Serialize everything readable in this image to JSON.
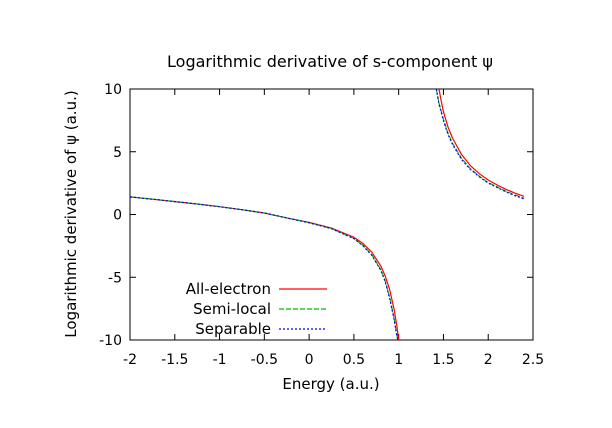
{
  "chart_data": {
    "type": "line",
    "title": "Logarithmic derivative of s-component ψ",
    "xlabel": "Energy (a.u.)",
    "ylabel": "Logarithmic derivative of ψ (a.u.)",
    "xlim": [
      -2,
      2.5
    ],
    "ylim": [
      -10,
      10
    ],
    "x_ticks": [
      -2,
      -1.5,
      -1,
      -0.5,
      0,
      0.5,
      1,
      1.5,
      2,
      2.5
    ],
    "y_ticks": [
      -10,
      -5,
      0,
      5,
      10
    ],
    "x_tick_labels": [
      "-2",
      "-1.5",
      "-1",
      "-0.5",
      "0",
      "0.5",
      "1",
      "1.5",
      "2",
      "2.5"
    ],
    "y_tick_labels": [
      "-10",
      "-5",
      "0",
      "5",
      "10"
    ],
    "grid": false,
    "legend_position": "bottom-left",
    "series": [
      {
        "name": "All-electron",
        "color": "#ff0000",
        "dash": "solid",
        "x": [
          -2.0,
          -1.75,
          -1.5,
          -1.25,
          -1.0,
          -0.75,
          -0.5,
          -0.25,
          0.0,
          0.25,
          0.5,
          0.6,
          0.7,
          0.8,
          0.85,
          0.9,
          0.95,
          0.98,
          1.0,
          null,
          1.45,
          1.47,
          1.5,
          1.55,
          1.6,
          1.7,
          1.8,
          1.9,
          2.0,
          2.1,
          2.2,
          2.3,
          2.4
        ],
        "y": [
          1.4,
          1.22,
          1.03,
          0.84,
          0.62,
          0.38,
          0.12,
          -0.27,
          -0.62,
          -1.08,
          -1.82,
          -2.3,
          -3.0,
          -4.1,
          -4.9,
          -6.0,
          -7.6,
          -8.9,
          -10.0,
          null,
          10.0,
          9.2,
          8.2,
          7.0,
          6.1,
          4.8,
          3.9,
          3.25,
          2.75,
          2.35,
          2.0,
          1.7,
          1.45
        ]
      },
      {
        "name": "Semi-local",
        "color": "#00c000",
        "dash": "dashed",
        "x": [
          -2.0,
          -1.75,
          -1.5,
          -1.25,
          -1.0,
          -0.75,
          -0.5,
          -0.25,
          0.0,
          0.25,
          0.5,
          0.6,
          0.7,
          0.8,
          0.85,
          0.9,
          0.95,
          0.97,
          0.99,
          null,
          1.42,
          1.45,
          1.5,
          1.55,
          1.6,
          1.7,
          1.8,
          1.9,
          2.0,
          2.1,
          2.2,
          2.3,
          2.4
        ],
        "y": [
          1.4,
          1.22,
          1.03,
          0.84,
          0.62,
          0.38,
          0.12,
          -0.27,
          -0.65,
          -1.12,
          -1.9,
          -2.45,
          -3.2,
          -4.4,
          -5.3,
          -6.6,
          -8.3,
          -9.2,
          -10.0,
          null,
          10.0,
          8.9,
          7.6,
          6.5,
          5.7,
          4.5,
          3.65,
          3.05,
          2.55,
          2.2,
          1.85,
          1.55,
          1.3
        ]
      },
      {
        "name": "Separable",
        "color": "#0000ff",
        "dash": "dotted",
        "x": [
          -2.0,
          -1.75,
          -1.5,
          -1.25,
          -1.0,
          -0.75,
          -0.5,
          -0.25,
          0.0,
          0.25,
          0.5,
          0.6,
          0.7,
          0.8,
          0.85,
          0.9,
          0.95,
          0.97,
          0.99,
          null,
          1.42,
          1.45,
          1.5,
          1.55,
          1.6,
          1.7,
          1.8,
          1.9,
          2.0,
          2.1,
          2.2,
          2.3,
          2.4
        ],
        "y": [
          1.4,
          1.22,
          1.03,
          0.84,
          0.62,
          0.38,
          0.12,
          -0.27,
          -0.66,
          -1.13,
          -1.92,
          -2.48,
          -3.25,
          -4.45,
          -5.35,
          -6.7,
          -8.4,
          -9.3,
          -10.0,
          null,
          10.0,
          8.8,
          7.5,
          6.4,
          5.6,
          4.4,
          3.6,
          3.0,
          2.5,
          2.15,
          1.8,
          1.5,
          1.25
        ]
      }
    ]
  }
}
